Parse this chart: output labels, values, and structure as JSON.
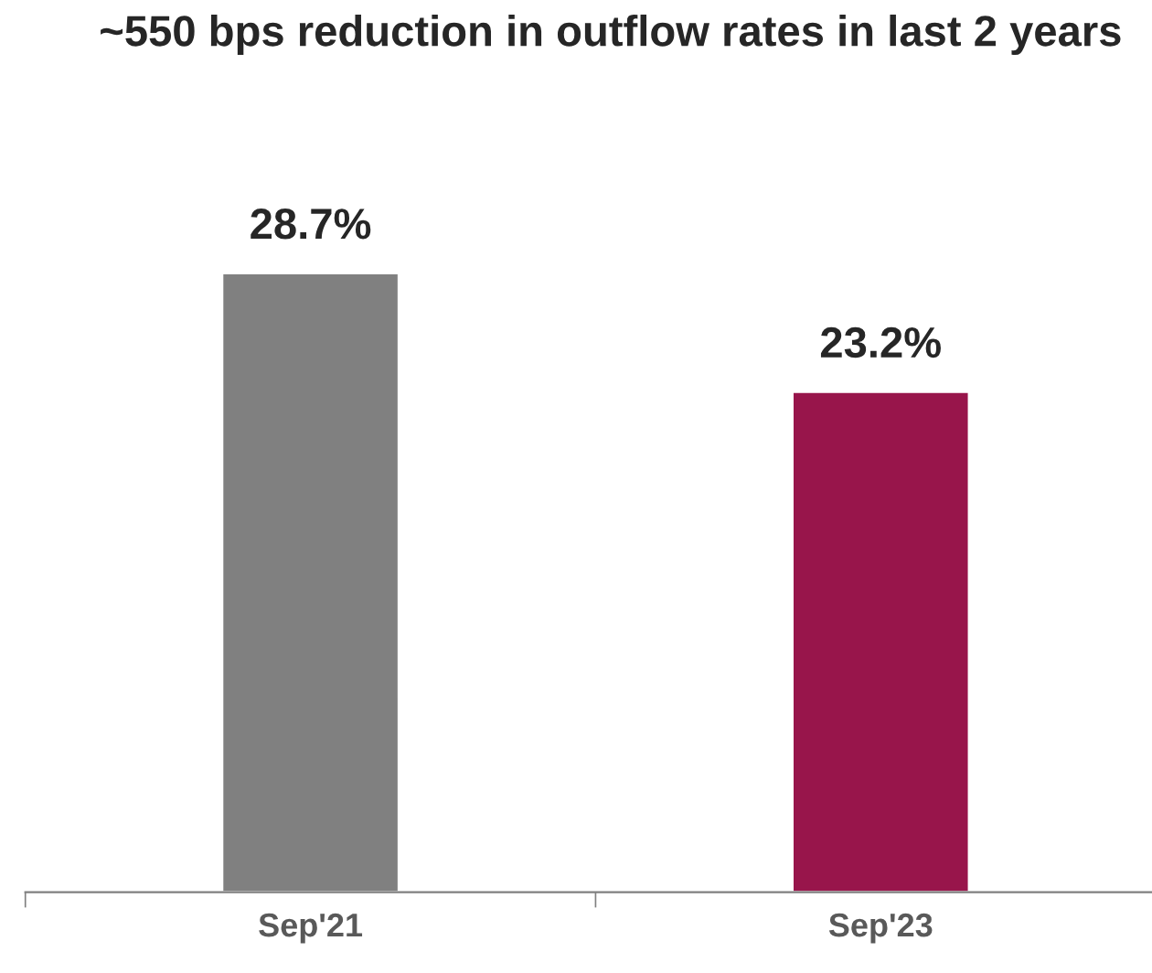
{
  "chart_data": {
    "type": "bar",
    "title": "~550 bps reduction in outflow rates in last 2 years",
    "categories": [
      "Sep'21",
      "Sep'23"
    ],
    "values": [
      28.7,
      23.2
    ],
    "colors": [
      "#808080",
      "#98154b"
    ],
    "value_labels": [
      "28.7%",
      "23.2%"
    ],
    "grid": false,
    "legend": false
  }
}
